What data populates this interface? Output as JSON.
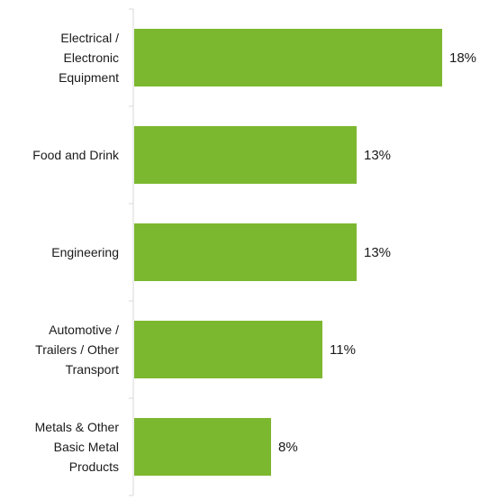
{
  "chart_data": {
    "type": "bar",
    "orientation": "horizontal",
    "categories": [
      [
        "Electrical /",
        "Electronic",
        "Equipment"
      ],
      [
        "Food and Drink"
      ],
      [
        "Engineering"
      ],
      [
        "Automotive /",
        "Trailers / Other",
        "Transport"
      ],
      [
        "Metals & Other",
        "Basic Metal",
        "Products"
      ]
    ],
    "values": [
      18,
      13,
      13,
      11,
      8
    ],
    "value_labels": [
      "18%",
      "13%",
      "13%",
      "11%",
      "8%"
    ],
    "unit": "%",
    "title": "",
    "xlabel": "",
    "ylabel": "",
    "xlim": [
      0,
      20
    ],
    "grid": false,
    "legend": "none",
    "bar_color": "#7cb82f",
    "axis_color": "#d9d9d9"
  }
}
